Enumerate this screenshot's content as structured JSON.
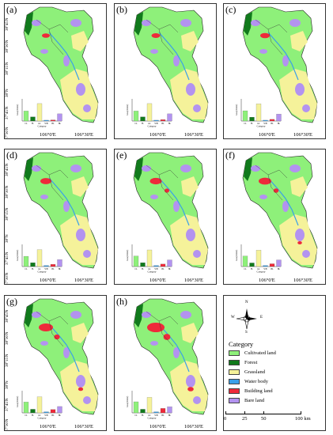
{
  "panels": [
    {
      "label": "(a)",
      "chart_data": {
        "type": "bar",
        "categories": [
          "CL",
          "FL",
          "GL",
          "WB",
          "BL",
          "BL"
        ],
        "values": [
          3.6,
          1.5,
          6.3,
          0.3,
          0.4,
          2.6
        ],
        "xlabel": "Category",
        "ylabel": "Area(10⁴km²)",
        "ylim": [
          0,
          8
        ]
      }
    },
    {
      "label": "(b)",
      "chart_data": {
        "type": "bar",
        "categories": [
          "CL",
          "FL",
          "GL",
          "WB",
          "BL",
          "BL"
        ],
        "values": [
          3.6,
          1.5,
          6.3,
          0.3,
          0.5,
          2.6
        ],
        "xlabel": "Category",
        "ylabel": "Area(10⁴km²)",
        "ylim": [
          0,
          8
        ]
      }
    },
    {
      "label": "(c)",
      "chart_data": {
        "type": "bar",
        "categories": [
          "CL",
          "FL",
          "GL",
          "WB",
          "BL",
          "BL"
        ],
        "values": [
          3.7,
          1.4,
          6.2,
          0.3,
          0.6,
          2.5
        ],
        "xlabel": "Category",
        "ylabel": "Area(10⁴km²)",
        "ylim": [
          0,
          8
        ]
      }
    },
    {
      "label": "(d)",
      "chart_data": {
        "type": "bar",
        "categories": [
          "CL",
          "FL",
          "GL",
          "WB",
          "BL",
          "BL"
        ],
        "values": [
          3.7,
          1.4,
          6.1,
          0.4,
          0.8,
          2.5
        ],
        "xlabel": "Category",
        "ylabel": "Area(10⁴km²)",
        "ylim": [
          0,
          8
        ]
      }
    },
    {
      "label": "(e)",
      "chart_data": {
        "type": "bar",
        "categories": [
          "CL",
          "FL",
          "GL",
          "WB",
          "BL",
          "BL"
        ],
        "values": [
          3.8,
          1.4,
          6.0,
          0.4,
          0.9,
          2.4
        ],
        "xlabel": "Category",
        "ylabel": "Area(10⁴km²)",
        "ylim": [
          0,
          8
        ]
      }
    },
    {
      "label": "(f)",
      "chart_data": {
        "type": "bar",
        "categories": [
          "CL",
          "FL",
          "GL",
          "WB",
          "BL",
          "BL"
        ],
        "values": [
          3.8,
          1.3,
          5.9,
          0.4,
          1.0,
          2.4
        ],
        "xlabel": "Category",
        "ylabel": "Area(10⁴km²)",
        "ylim": [
          0,
          8
        ]
      }
    },
    {
      "label": "(g)",
      "chart_data": {
        "type": "bar",
        "categories": [
          "CL",
          "FL",
          "GL",
          "WB",
          "BL",
          "BL"
        ],
        "values": [
          3.9,
          1.3,
          5.8,
          0.4,
          1.2,
          2.3
        ],
        "xlabel": "Category",
        "ylabel": "Area(10⁴km²)",
        "ylim": [
          0,
          8
        ]
      }
    },
    {
      "label": "(h)",
      "chart_data": {
        "type": "bar",
        "categories": [
          "CL",
          "FL",
          "GL",
          "WB",
          "BL",
          "BL"
        ],
        "values": [
          4.0,
          1.3,
          5.6,
          0.4,
          1.6,
          2.2
        ],
        "xlabel": "Category",
        "ylabel": "Area(10⁴km²)",
        "ylim": [
          0,
          8
        ]
      }
    }
  ],
  "lat_labels": [
    "38°45'N",
    "38°30'N",
    "38°15'N",
    "38°N",
    "37°45'N",
    "37°30'N"
  ],
  "lon_labels": [
    "106°0'E",
    "106°30'E"
  ],
  "legend": {
    "title": "Category",
    "items": [
      {
        "label": "Cultivated land",
        "color": "#8ef07a"
      },
      {
        "label": "Forest",
        "color": "#117a1c"
      },
      {
        "label": "Grassland",
        "color": "#f5f29a"
      },
      {
        "label": "Water body",
        "color": "#3aa0e8"
      },
      {
        "label": "Building land",
        "color": "#ee2a3a"
      },
      {
        "label": "Bare land",
        "color": "#b393f0"
      }
    ]
  },
  "compass": {
    "n": "N",
    "s": "S",
    "e": "E",
    "w": "W"
  },
  "scale": {
    "ticks": [
      "0",
      "25",
      "50",
      "100 km"
    ]
  }
}
